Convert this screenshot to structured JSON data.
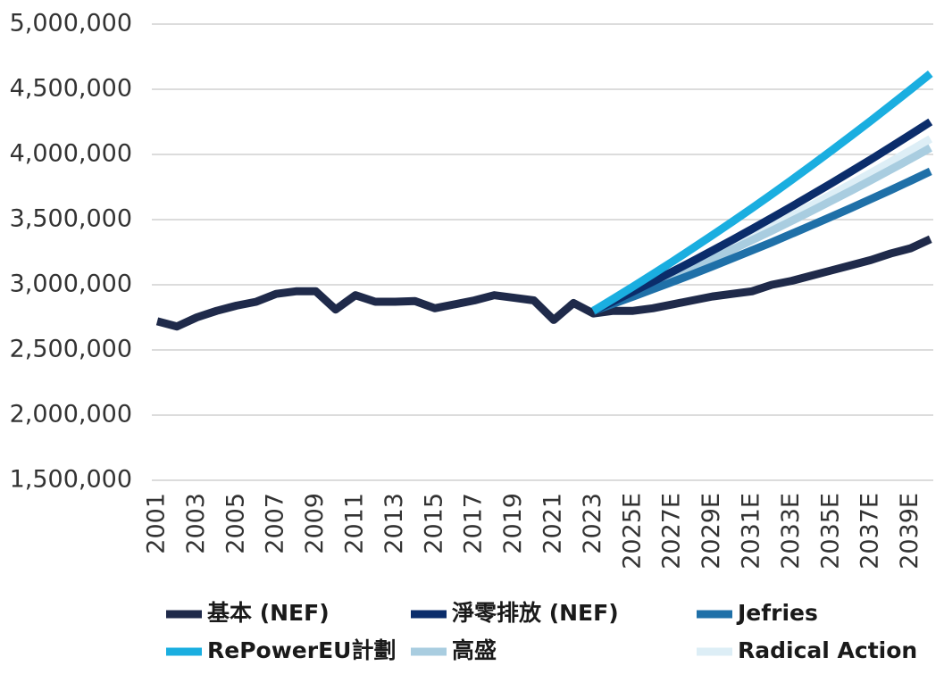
{
  "chart_data": {
    "type": "line",
    "categories": [
      "2001",
      null,
      "2003",
      null,
      "2005",
      null,
      "2007",
      null,
      "2009",
      null,
      "2011",
      null,
      "2013",
      null,
      "2015",
      null,
      "2017",
      null,
      "2019",
      null,
      "2021",
      null,
      "2023",
      null,
      "2025E",
      null,
      "2027E",
      null,
      "2029E",
      null,
      "2031E",
      null,
      "2033E",
      null,
      "2035E",
      null,
      "2037E",
      null,
      "2039E",
      null
    ],
    "series": [
      {
        "name": "基本 (NEF)",
        "color": "#1f2a4a",
        "values": [
          2720000,
          2680000,
          2750000,
          2800000,
          2840000,
          2870000,
          2930000,
          2950000,
          2950000,
          2810000,
          2920000,
          2870000,
          2870000,
          2875000,
          2820000,
          2850000,
          2880000,
          2920000,
          2900000,
          2880000,
          2730000,
          2860000,
          2780000,
          2800000,
          2800000,
          2820000,
          2850000,
          2880000,
          2910000,
          2930000,
          2950000,
          3000000,
          3030000,
          3070000,
          3110000,
          3150000,
          3190000,
          3240000,
          3280000,
          3350000
        ]
      },
      {
        "name": "淨零排放 (NEF)",
        "color": "#0b2d6b",
        "values": [
          null,
          null,
          null,
          null,
          null,
          null,
          null,
          null,
          null,
          null,
          null,
          null,
          null,
          null,
          null,
          null,
          null,
          null,
          null,
          null,
          null,
          null,
          2800000,
          2873000,
          2948000,
          3024000,
          3102000,
          3181000,
          3262000,
          3344000,
          3428000,
          3513000,
          3600000,
          3689000,
          3778000,
          3870000,
          3962000,
          4057000,
          4153000,
          4250000
        ]
      },
      {
        "name": "Jefries",
        "color": "#1f70a8",
        "values": [
          null,
          null,
          null,
          null,
          null,
          null,
          null,
          null,
          null,
          null,
          null,
          null,
          null,
          null,
          null,
          null,
          null,
          null,
          null,
          null,
          null,
          null,
          2800000,
          2854000,
          2909000,
          2966000,
          3023000,
          3081000,
          3141000,
          3202000,
          3264000,
          3326000,
          3391000,
          3456000,
          3522000,
          3589000,
          3658000,
          3727000,
          3798000,
          3870000
        ]
      },
      {
        "name": "RePowerEU計劃",
        "color": "#1aaee0",
        "values": [
          null,
          null,
          null,
          null,
          null,
          null,
          null,
          null,
          null,
          null,
          null,
          null,
          null,
          null,
          null,
          null,
          null,
          null,
          null,
          null,
          null,
          null,
          2800000,
          2892000,
          2986000,
          3082000,
          3179000,
          3279000,
          3380000,
          3483000,
          3588000,
          3695000,
          3804000,
          3915000,
          4028000,
          4143000,
          4259000,
          4378000,
          4498000,
          4620000
        ]
      },
      {
        "name": "高盛",
        "color": "#a9cde0",
        "values": [
          null,
          null,
          null,
          null,
          null,
          null,
          null,
          null,
          null,
          null,
          null,
          null,
          null,
          null,
          null,
          null,
          null,
          null,
          null,
          null,
          null,
          null,
          2800000,
          2863000,
          2928000,
          2993000,
          3060000,
          3129000,
          3198000,
          3269000,
          3342000,
          3415000,
          3490000,
          3566000,
          3644000,
          3722000,
          3802000,
          3884000,
          3966000,
          4050000
        ]
      },
      {
        "name": "Radical Action",
        "color": "#ddeef6",
        "values": [
          null,
          null,
          null,
          null,
          null,
          null,
          null,
          null,
          null,
          null,
          null,
          null,
          null,
          null,
          null,
          null,
          null,
          null,
          null,
          null,
          null,
          null,
          2800000,
          2867000,
          2935000,
          3004000,
          3075000,
          3147000,
          3221000,
          3296000,
          3372000,
          3449000,
          3528000,
          3609000,
          3691000,
          3774000,
          3858000,
          3944000,
          4031000,
          4120000
        ]
      }
    ],
    "ylim": [
      1500000,
      5000000
    ],
    "yticks": [
      {
        "value": 1500000,
        "label": "1,500,000"
      },
      {
        "value": 2000000,
        "label": "2,000,000"
      },
      {
        "value": 2500000,
        "label": "2,500,000"
      },
      {
        "value": 3000000,
        "label": "3,000,000"
      },
      {
        "value": 3500000,
        "label": "3,500,000"
      },
      {
        "value": 4000000,
        "label": "4,000,000"
      },
      {
        "value": 4500000,
        "label": "4,500,000"
      },
      {
        "value": 5000000,
        "label": "5,000,000"
      }
    ],
    "grid": true,
    "legend": "bottom"
  }
}
